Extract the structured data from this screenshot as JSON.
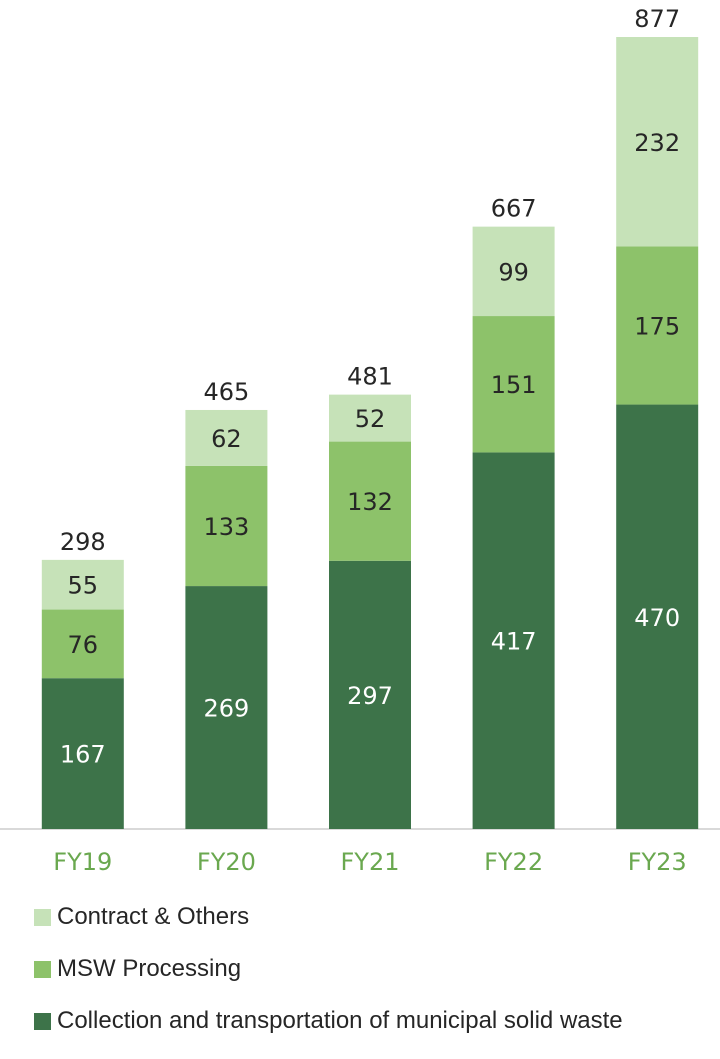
{
  "chart_data": {
    "type": "bar",
    "stacked": true,
    "categories": [
      "FY19",
      "FY20",
      "FY21",
      "FY22",
      "FY23"
    ],
    "series": [
      {
        "name": "Collection and transportation of municipal solid waste",
        "values": [
          167,
          269,
          297,
          417,
          470
        ],
        "color": "#3d7349"
      },
      {
        "name": "MSW Processing",
        "values": [
          76,
          133,
          132,
          151,
          175
        ],
        "color": "#8dc26a"
      },
      {
        "name": "Contract & Others",
        "values": [
          55,
          62,
          52,
          99,
          232
        ],
        "color": "#c6e2b8"
      }
    ],
    "totals": [
      298,
      465,
      481,
      667,
      877
    ],
    "ylim": [
      0,
      877
    ],
    "grid": false,
    "legend_position": "bottom",
    "legend_order": [
      "Contract & Others",
      "MSW Processing",
      "Collection and transportation of municipal solid waste"
    ],
    "colors": {
      "category_label": "#6aa84f",
      "total_label": "#262626",
      "label_on_dark": "#ffffff",
      "label_on_light": "#262626",
      "axis": "#d9d9d9"
    }
  }
}
